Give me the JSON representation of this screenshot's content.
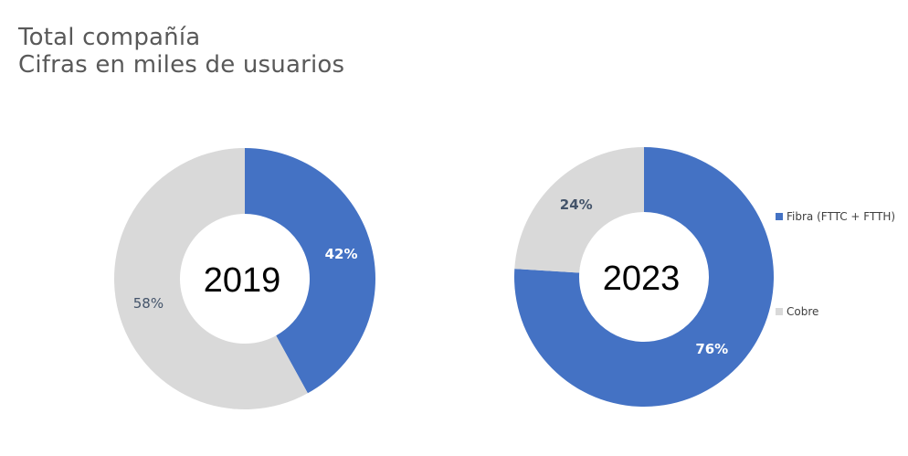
{
  "title": {
    "line1": "Total compañía",
    "line2": "Cifras en miles de usuarios"
  },
  "colors": {
    "fibra": "#4472C4",
    "cobre": "#D9D9D9"
  },
  "chart_data": [
    {
      "type": "pie",
      "variant": "donut",
      "center_label": "2019",
      "slices": [
        {
          "name": "Fibra (FTTC + FTTH)",
          "value": 42,
          "label": "42%"
        },
        {
          "name": "Cobre",
          "value": 58,
          "label": "58%"
        }
      ],
      "legend": "none"
    },
    {
      "type": "pie",
      "variant": "donut",
      "center_label": "2023",
      "slices": [
        {
          "name": "Fibra (FTTC + FTTH)",
          "value": 76,
          "label": "76%"
        },
        {
          "name": "Cobre",
          "value": 24,
          "label": "24%"
        }
      ],
      "legend": "right"
    }
  ],
  "legend_items": [
    "Fibra (FTTC + FTTH)",
    "Cobre"
  ]
}
